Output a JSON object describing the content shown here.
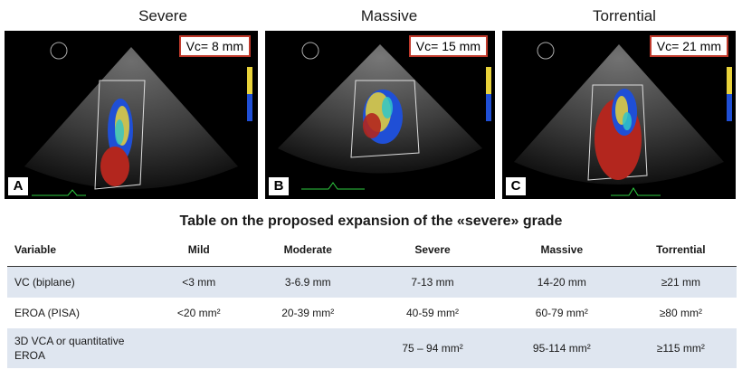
{
  "panels": [
    {
      "title": "Severe",
      "letter": "A",
      "vc": "Vc= 8 mm"
    },
    {
      "title": "Massive",
      "letter": "B",
      "vc": "Vc= 15 mm"
    },
    {
      "title": "Torrential",
      "letter": "C",
      "vc": "Vc= 21 mm"
    }
  ],
  "table": {
    "title": "Table on the proposed expansion of the «severe» grade",
    "headers": [
      "Variable",
      "Mild",
      "Moderate",
      "Severe",
      "Massive",
      "Torrential"
    ],
    "rows": [
      [
        "VC (biplane)",
        "<3 mm",
        "3-6.9 mm",
        "7-13 mm",
        "14-20 mm",
        "≥21 mm"
      ],
      [
        "EROA (PISA)",
        "<20 mm²",
        "20-39 mm²",
        "40-59 mm²",
        "60-79 mm²",
        "≥80 mm²"
      ],
      [
        "3D VCA or quantitative EROA",
        "",
        "",
        "75 – 94 mm²",
        "95-114 mm²",
        "≥115 mm²"
      ]
    ]
  },
  "colors": {
    "echo_background": "#000000",
    "vc_box_border": "#c0392b",
    "table_alt_row": "#dfe6f0",
    "doppler_red": "#b3261e",
    "doppler_blue": "#1f4fd6",
    "doppler_yellow": "#e8d23a",
    "doppler_cyan": "#2fc6c9"
  }
}
